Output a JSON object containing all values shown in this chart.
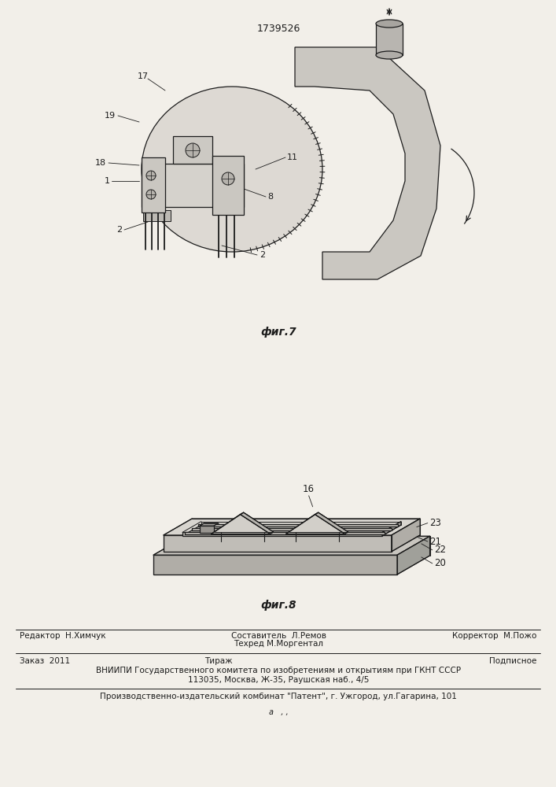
{
  "background_color": "#f2efe9",
  "patent_number": "1739526",
  "fig7_caption": "фиг.7",
  "fig8_caption": "фиг.8",
  "footer_line1_left": "Редактор  Н.Химчук",
  "footer_line1_center_top": "Составитель  Л.Ремов",
  "footer_line1_center_bot": "Техред М.Моргентал",
  "footer_line1_right": "Корректор  М.Пожо",
  "footer_line2_left": "Заказ  2011",
  "footer_line2_center": "Тираж",
  "footer_line2_right": "Подписное",
  "footer_line3": "ВНИИПИ Государственного комитета по изобретениям и открытиям при ГКНТ СССР",
  "footer_line4": "113035, Москва, Ж-35, Раушская наб., 4/5",
  "footer_line5": "Производственно-издательский комбинат \"Патент\", г. Ужгород, ул.Гагарина, 101",
  "page_num": "а   , ,"
}
